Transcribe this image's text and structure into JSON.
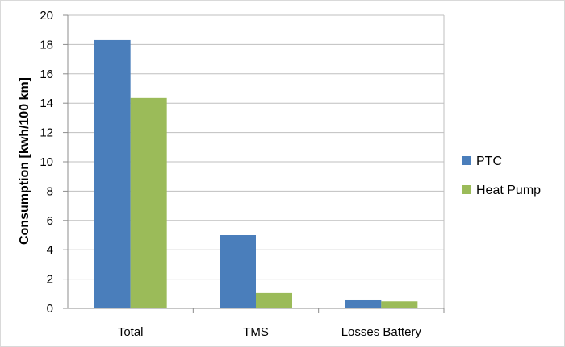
{
  "chart_data": {
    "type": "bar",
    "title": "",
    "xlabel": "",
    "ylabel": "Consumption [kwh/100 km]",
    "categories": [
      "Total",
      "TMS",
      "Losses Battery"
    ],
    "series": [
      {
        "name": "PTC",
        "values": [
          18.3,
          5.0,
          0.55
        ],
        "color": "#4a7ebb"
      },
      {
        "name": "Heat Pump",
        "values": [
          14.35,
          1.05,
          0.48
        ],
        "color": "#9bbb59"
      }
    ],
    "ylim": [
      0,
      20
    ],
    "yticks": [
      "0",
      "2",
      "4",
      "6",
      "8",
      "10",
      "12",
      "14",
      "16",
      "18",
      "20"
    ],
    "grid": true,
    "legend": "right"
  }
}
